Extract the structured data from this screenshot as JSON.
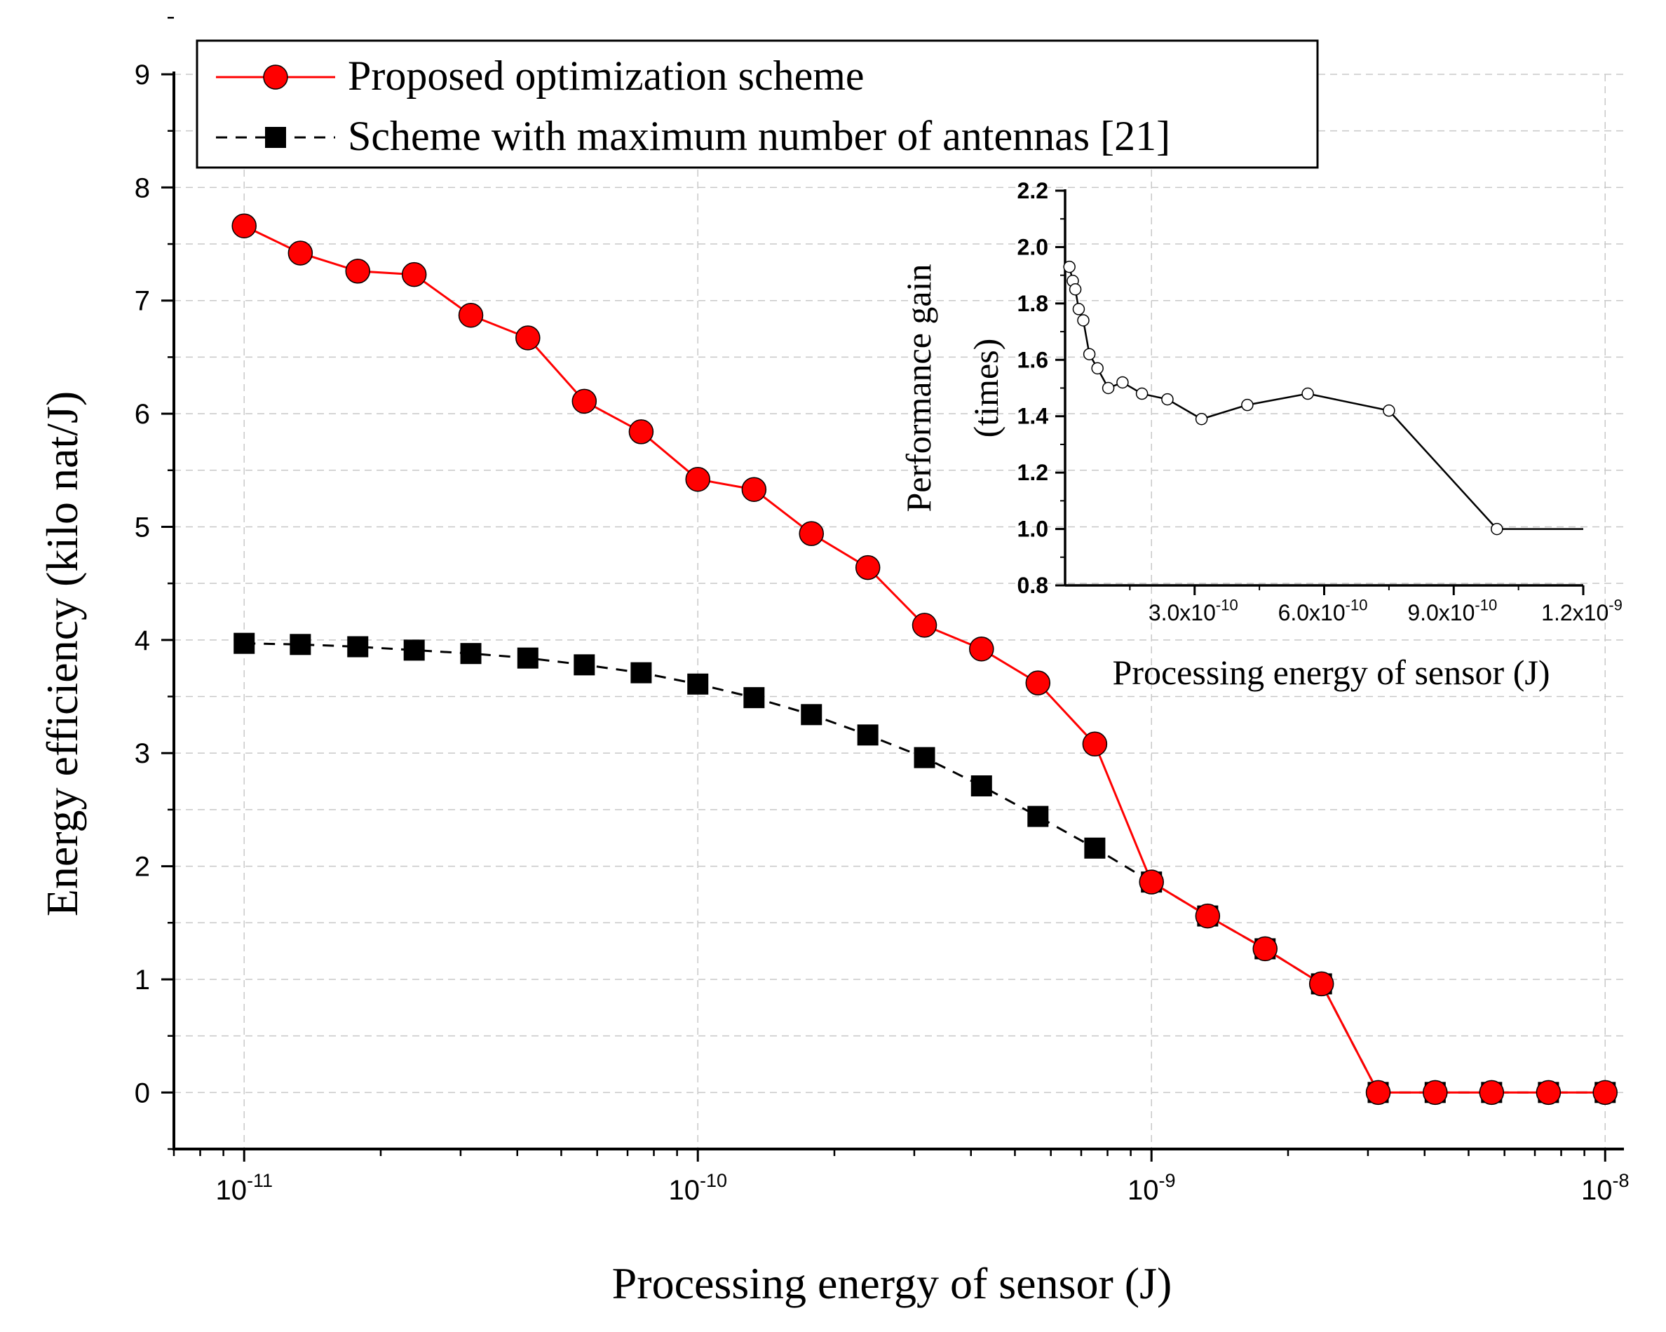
{
  "chart_data": [
    {
      "type": "line",
      "x_scale": "log",
      "xlim": [
        7e-12,
        1.1e-08
      ],
      "ylim": [
        -0.5,
        9
      ],
      "xticks": [
        1e-11,
        1e-10,
        1e-09,
        1e-08
      ],
      "xtick_labels": [
        {
          "base": "10",
          "exp": "-11"
        },
        {
          "base": "10",
          "exp": "-10"
        },
        {
          "base": "10",
          "exp": "-9"
        },
        {
          "base": "10",
          "exp": "-8"
        }
      ],
      "yticks": [
        0,
        1,
        2,
        3,
        4,
        5,
        6,
        7,
        8,
        9
      ],
      "xlabel": "Processing energy of sensor (J)",
      "ylabel": "Energy efficiency (kilo nat/J)",
      "grid": true,
      "legend_position": "top-left",
      "x": [
        1e-11,
        1.33e-11,
        1.78e-11,
        2.37e-11,
        3.16e-11,
        4.22e-11,
        5.62e-11,
        7.5e-11,
        1e-10,
        1.33e-10,
        1.78e-10,
        2.37e-10,
        3.16e-10,
        4.22e-10,
        5.62e-10,
        7.5e-10,
        1e-09,
        1.33e-09,
        1.78e-09,
        2.37e-09,
        3.16e-09,
        4.22e-09,
        5.62e-09,
        7.5e-09,
        1e-08
      ],
      "series": [
        {
          "name": "Proposed optimization scheme",
          "color": "#ff0000",
          "marker": "circle",
          "line": "solid",
          "values": [
            7.66,
            7.42,
            7.26,
            7.23,
            6.87,
            6.67,
            6.11,
            5.84,
            5.42,
            5.33,
            4.94,
            4.64,
            4.13,
            3.92,
            3.62,
            3.08,
            1.86,
            1.56,
            1.27,
            0.96,
            0.0,
            0.0,
            0.0,
            0.0,
            0.0
          ]
        },
        {
          "name": "Scheme with maximum number of antennas [21]",
          "color": "#000000",
          "marker": "square",
          "line": "dashed",
          "values": [
            3.97,
            3.96,
            3.94,
            3.91,
            3.88,
            3.84,
            3.78,
            3.71,
            3.61,
            3.49,
            3.34,
            3.16,
            2.96,
            2.71,
            2.44,
            2.16,
            1.86,
            1.56,
            1.27,
            0.96,
            0.0,
            0.0,
            0.0,
            0.0,
            0.0
          ]
        }
      ]
    },
    {
      "type": "line",
      "inset": true,
      "xlim": [
        0,
        1.2e-09
      ],
      "ylim": [
        0.8,
        2.2
      ],
      "xticks": [
        3e-10,
        6e-10,
        9e-10,
        1.2e-09
      ],
      "xtick_labels": [
        {
          "base": "3.0x10",
          "exp": "-10"
        },
        {
          "base": "6.0x10",
          "exp": "-10"
        },
        {
          "base": "9.0x10",
          "exp": "-10"
        },
        {
          "base": "1.2x10",
          "exp": "-9"
        }
      ],
      "ytick_labels": [
        "0.8",
        "1.0",
        "1.2",
        "1.4",
        "1.6",
        "1.8",
        "2.0",
        "2.2"
      ],
      "xlabel": "Processing energy of sensor (J)",
      "ylabel_lines": [
        "Performance gain",
        "(times)"
      ],
      "color": "#000000",
      "marker": "open-circle",
      "x": [
        1e-11,
        1.78e-11,
        2.37e-11,
        3.16e-11,
        4.22e-11,
        5.62e-11,
        7.5e-11,
        1e-10,
        1.33e-10,
        1.78e-10,
        2.37e-10,
        3.16e-10,
        4.22e-10,
        5.62e-10,
        7.5e-10,
        1e-09,
        1.2e-09
      ],
      "values": [
        1.93,
        1.88,
        1.85,
        1.78,
        1.74,
        1.62,
        1.57,
        1.5,
        1.52,
        1.48,
        1.46,
        1.39,
        1.44,
        1.48,
        1.42,
        1.0,
        1.0
      ],
      "marker_shown": [
        true,
        true,
        true,
        true,
        true,
        true,
        true,
        true,
        true,
        true,
        true,
        true,
        true,
        true,
        true,
        true,
        false
      ]
    }
  ]
}
